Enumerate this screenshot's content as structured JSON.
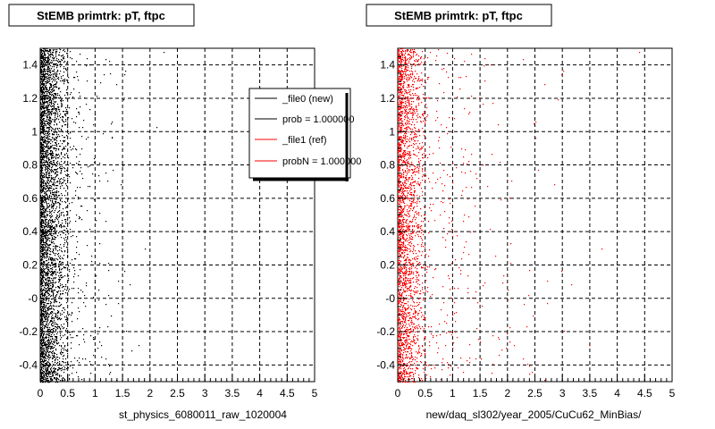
{
  "chart_data": [
    {
      "type": "scatter",
      "title": "StEMB primtrk: pT, ftpc",
      "xlabel": "st_physics_6080011_raw_1020004",
      "ylabel": "",
      "xlim": [
        0,
        5
      ],
      "ylim": [
        -0.5,
        1.5
      ],
      "x_ticks": [
        "0",
        "0.5",
        "1",
        "1.5",
        "2",
        "2.5",
        "3",
        "3.5",
        "4",
        "4.5",
        "5"
      ],
      "y_ticks": [
        "-0.4",
        "-0.2",
        "-0",
        "0.2",
        "0.4",
        "0.6",
        "0.8",
        "1",
        "1.2",
        "1.4"
      ],
      "grid": true,
      "marker_color": "#000000",
      "density_description": "dense at low x (0-0.5), sparse tail to ~2.5",
      "legend": {
        "placement": "top-right",
        "entries": [
          {
            "label": "_file0 (new)",
            "color": "#000000"
          },
          {
            "label": "prob = 1.000000",
            "color": "#000000"
          },
          {
            "label": "_file1 (ref)",
            "color": "#ff0000"
          },
          {
            "label": "probN = 1.000000",
            "color": "#ff0000"
          }
        ]
      }
    },
    {
      "type": "scatter",
      "title": "StEMB primtrk: pT, ftpc",
      "xlabel": "new/daq_sl302/year_2005/CuCu62_MinBias/",
      "ylabel": "",
      "xlim": [
        0,
        5
      ],
      "ylim": [
        -0.5,
        1.5
      ],
      "x_ticks": [
        "0",
        "0.5",
        "1",
        "1.5",
        "2",
        "2.5",
        "3",
        "3.5",
        "4",
        "4.5",
        "5"
      ],
      "y_ticks": [
        "-0.4",
        "-0.2",
        "-0",
        "0.2",
        "0.4",
        "0.6",
        "0.8",
        "1",
        "1.2",
        "1.4"
      ],
      "grid": true,
      "marker_color": "#ff0000",
      "density_description": "dense at low x (0-0.5), sparse tail to ~5"
    }
  ]
}
